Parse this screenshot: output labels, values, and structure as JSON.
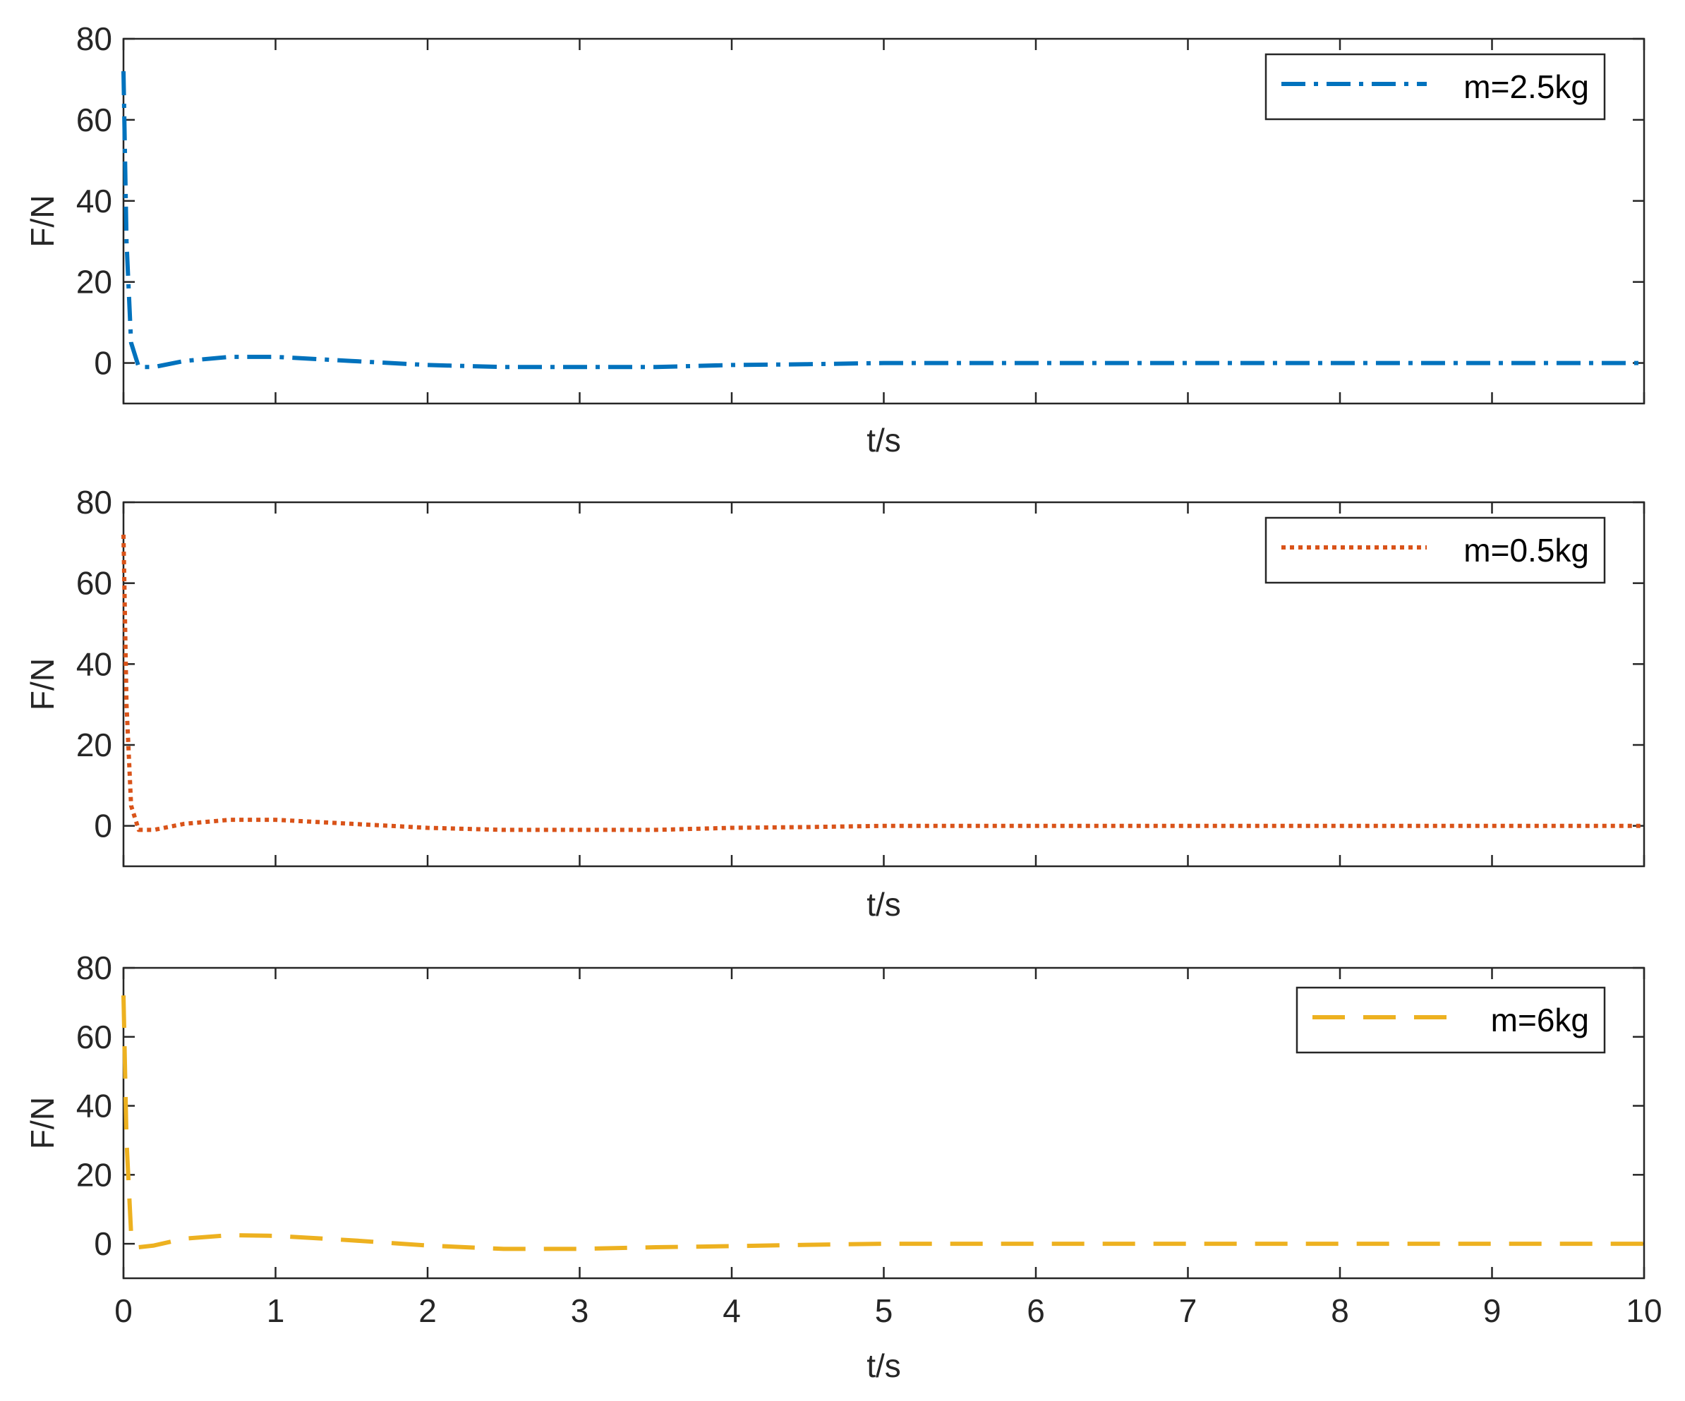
{
  "chart_data": [
    {
      "type": "line",
      "xlabel": "t/s",
      "ylabel": "F/N",
      "xlim": [
        0,
        10
      ],
      "ylim": [
        -10,
        80
      ],
      "yticks": [
        0,
        20,
        40,
        60,
        80
      ],
      "xticks": [
        0,
        1,
        2,
        3,
        4,
        5,
        6,
        7,
        8,
        9,
        10
      ],
      "show_xtick_labels": false,
      "legend_position": "top-right",
      "series": [
        {
          "name": "m=2.5kg",
          "color": "#0072BD",
          "line_style": "dash-dot",
          "x": [
            0,
            0.02,
            0.05,
            0.1,
            0.2,
            0.4,
            0.7,
            1.0,
            1.5,
            2.0,
            2.5,
            3.0,
            3.5,
            4.0,
            4.5,
            5.0,
            6.0,
            7.0,
            8.0,
            9.0,
            10.0
          ],
          "y": [
            72,
            30,
            5,
            -1,
            -1,
            0.5,
            1.5,
            1.5,
            0.5,
            -0.5,
            -1,
            -1,
            -1,
            -0.5,
            -0.3,
            0,
            0,
            0,
            0,
            0,
            0
          ]
        }
      ]
    },
    {
      "type": "line",
      "xlabel": "t/s",
      "ylabel": "F/N",
      "xlim": [
        0,
        10
      ],
      "ylim": [
        -10,
        80
      ],
      "yticks": [
        0,
        20,
        40,
        60,
        80
      ],
      "xticks": [
        0,
        1,
        2,
        3,
        4,
        5,
        6,
        7,
        8,
        9,
        10
      ],
      "show_xtick_labels": false,
      "legend_position": "top-right",
      "series": [
        {
          "name": "m=0.5kg",
          "color": "#D95319",
          "line_style": "dotted",
          "x": [
            0,
            0.02,
            0.05,
            0.1,
            0.2,
            0.4,
            0.7,
            1.0,
            1.5,
            2.0,
            2.5,
            3.0,
            3.5,
            4.0,
            4.5,
            5.0,
            6.0,
            7.0,
            8.0,
            9.0,
            10.0
          ],
          "y": [
            72,
            30,
            5,
            -1,
            -1,
            0.5,
            1.5,
            1.5,
            0.5,
            -0.5,
            -1,
            -1,
            -1,
            -0.5,
            -0.3,
            0,
            0,
            0,
            0,
            0,
            0
          ]
        }
      ]
    },
    {
      "type": "line",
      "xlabel": "t/s",
      "ylabel": "F/N",
      "xlim": [
        0,
        10
      ],
      "ylim": [
        -10,
        80
      ],
      "yticks": [
        0,
        20,
        40,
        60,
        80
      ],
      "xticks": [
        0,
        1,
        2,
        3,
        4,
        5,
        6,
        7,
        8,
        9,
        10
      ],
      "show_xtick_labels": true,
      "legend_position": "top-right",
      "series": [
        {
          "name": "m=6kg",
          "color": "#EDB120",
          "line_style": "dashed",
          "x": [
            0,
            0.02,
            0.05,
            0.1,
            0.2,
            0.4,
            0.7,
            1.0,
            1.5,
            2.0,
            2.5,
            3.0,
            3.5,
            4.0,
            4.5,
            5.0,
            6.0,
            7.0,
            8.0,
            9.0,
            10.0
          ],
          "y": [
            72,
            30,
            3,
            -1,
            -0.5,
            1.5,
            2.5,
            2.3,
            1,
            -0.5,
            -1.5,
            -1.5,
            -1,
            -0.7,
            -0.3,
            0,
            0,
            0,
            0,
            0,
            0
          ]
        }
      ]
    }
  ]
}
